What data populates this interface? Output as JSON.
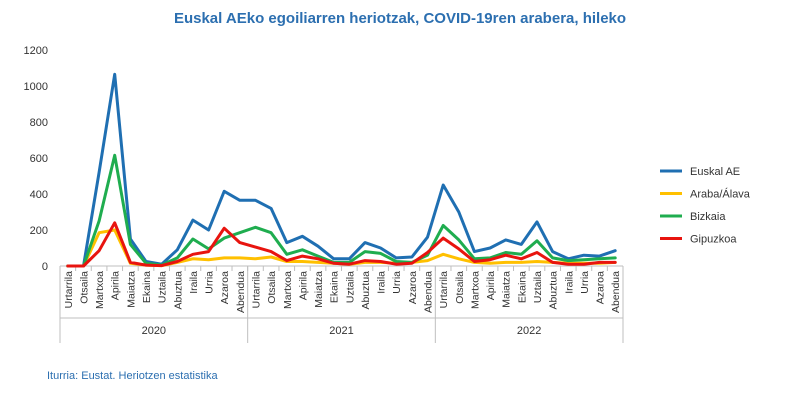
{
  "chart_data": {
    "type": "line",
    "title": "Euskal AEko egoiliarren heriotzak, COVID-19ren arabera, hileko",
    "source": "Iturria: Eustat. Heriotzen estatistika",
    "ylim": [
      0,
      1200
    ],
    "yticks": [
      "0",
      "200",
      "400",
      "600",
      "800",
      "1000",
      "1200"
    ],
    "grid": false,
    "legend_position": "right",
    "years": [
      "2020",
      "2021",
      "2022"
    ],
    "categories": [
      "Urtarrila",
      "Otsaila",
      "Martxoa",
      "Apirila",
      "Maiatza",
      "Ekaina",
      "Uztaila",
      "Abuztua",
      "Iraila",
      "Urria",
      "Azaroa",
      "Abendua",
      "Urtarrila",
      "Otsaila",
      "Martxoa",
      "Apirila",
      "Maiatza",
      "Ekaina",
      "Uztaila",
      "Abuztua",
      "Iraila",
      "Urria",
      "Azaroa",
      "Abendua",
      "Urtarrila",
      "Otsaila",
      "Martxoa",
      "Apirila",
      "Maiatza",
      "Ekaina",
      "Uztaila",
      "Abuztua",
      "Iraila",
      "Urria",
      "Azaroa",
      "Abendua"
    ],
    "series": [
      {
        "name": "Euskal AE",
        "color": "#1f6fb2",
        "values": [
          0,
          0,
          520,
          1065,
          150,
          25,
          10,
          90,
          255,
          200,
          415,
          365,
          365,
          320,
          130,
          165,
          110,
          40,
          40,
          130,
          100,
          45,
          50,
          160,
          450,
          300,
          80,
          100,
          145,
          120,
          245,
          80,
          40,
          60,
          55,
          85
        ]
      },
      {
        "name": "Araba/Álava",
        "color": "#ffc000",
        "values": [
          0,
          0,
          185,
          200,
          15,
          5,
          2,
          20,
          40,
          35,
          45,
          45,
          40,
          50,
          25,
          25,
          20,
          15,
          10,
          20,
          20,
          15,
          20,
          30,
          65,
          40,
          20,
          15,
          20,
          20,
          25,
          20,
          15,
          15,
          15,
          20
        ]
      },
      {
        "name": "Bizkaia",
        "color": "#1fad4f",
        "values": [
          0,
          0,
          250,
          615,
          120,
          15,
          5,
          45,
          150,
          95,
          155,
          185,
          215,
          185,
          65,
          90,
          55,
          20,
          20,
          80,
          70,
          25,
          20,
          60,
          225,
          145,
          40,
          45,
          75,
          65,
          140,
          45,
          30,
          35,
          40,
          45
        ]
      },
      {
        "name": "Gipuzkoa",
        "color": "#e8140f",
        "values": [
          0,
          0,
          85,
          240,
          20,
          5,
          2,
          25,
          65,
          80,
          210,
          130,
          105,
          80,
          30,
          55,
          40,
          15,
          10,
          30,
          25,
          10,
          15,
          75,
          155,
          95,
          25,
          35,
          60,
          40,
          75,
          20,
          10,
          10,
          20,
          20
        ]
      }
    ]
  }
}
